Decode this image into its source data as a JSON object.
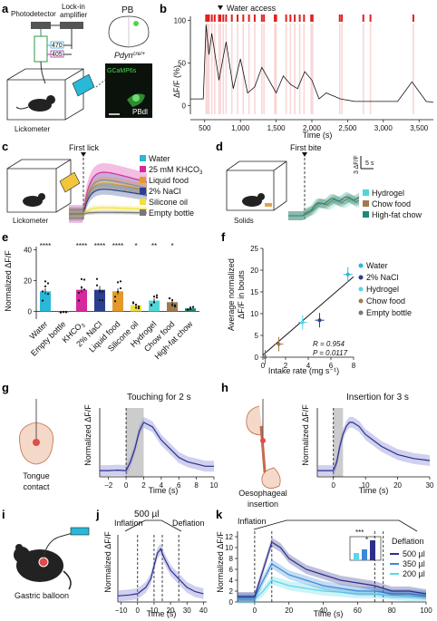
{
  "panels": {
    "a": {
      "label": "a",
      "photodetector": "Photodetector",
      "lockin": "Lock-in",
      "amplifier": "amplifier",
      "pb": "PB",
      "lambda1": "470",
      "lambda2": "405",
      "genotype": "Pdyn",
      "genotype_sup": "cre/+",
      "indicator": "GCaMP6s",
      "region": "PBdl",
      "lickometer": "Lickometer"
    },
    "b": {
      "label": "b",
      "annotation": "Water access",
      "ylabel": "ΔF/F (%)",
      "xlabel": "Time (s)",
      "yticks": [
        "0",
        "50",
        "100"
      ],
      "xticks": [
        "500",
        "1,000",
        "1,500",
        "2,000",
        "2,500",
        "3,000",
        "3,500"
      ]
    },
    "c": {
      "label": "c",
      "event": "First lick",
      "lickometer": "Lickometer",
      "legend": [
        {
          "name": "Water",
          "color": "#29b8d8"
        },
        {
          "name": "25 mM KHCO",
          "sub": "3",
          "color": "#d6299e"
        },
        {
          "name": "Liquid food",
          "color": "#e39a2b"
        },
        {
          "name": "2% NaCl",
          "color": "#2b3f8f"
        },
        {
          "name": "Silicone oil",
          "color": "#f2df3c"
        },
        {
          "name": "Empty bottle",
          "color": "#777777"
        }
      ]
    },
    "d": {
      "label": "d",
      "event": "First bite",
      "solids": "Solids",
      "scale_y": "3 ΔF/F",
      "scale_x": "5 s",
      "legend": [
        {
          "name": "Hydrogel",
          "color": "#4fd6d6"
        },
        {
          "name": "Chow food",
          "color": "#a07a50"
        },
        {
          "name": "High-fat chow",
          "color": "#1a8a7a"
        }
      ]
    },
    "e": {
      "label": "e",
      "ylabel": "Normalized ΔF/F",
      "yticks": [
        "0",
        "20",
        "40"
      ],
      "categories": [
        "Water",
        "Empty bottle",
        "KHCO3",
        "2% NaCl",
        "Liquid food",
        "Silicone oil",
        "Hydrogel",
        "Chow food",
        "High-fat chow"
      ],
      "xtick_text": [
        "Water",
        "Empty bottle",
        "KHCO",
        "2% NaCl",
        "Liquid food",
        "Silicone oil",
        "Hydrogel",
        "Chow food",
        "High-fat chow"
      ],
      "sig": [
        "****",
        "",
        "****",
        "****",
        "****",
        "*",
        "**",
        "*",
        ""
      ]
    },
    "f": {
      "label": "f",
      "ylabel1": "Average normalized",
      "ylabel2": "ΔF/F in bouts",
      "xlabel": "Intake rate (mg s⁻¹)",
      "xticks": [
        "0",
        "2",
        "4",
        "6",
        "8"
      ],
      "yticks": [
        "0",
        "5",
        "10",
        "15",
        "20",
        "25"
      ],
      "stat_r": "R = 0.954",
      "stat_p": "P = 0.0117",
      "legend": [
        {
          "name": "Water",
          "color": "#29b8d8"
        },
        {
          "name": "2% NaCl",
          "color": "#2b3f8f"
        },
        {
          "name": "Hydrogel",
          "color": "#4fd6f0"
        },
        {
          "name": "Chow food",
          "color": "#a07a50"
        },
        {
          "name": "Empty bottle",
          "color": "#777777"
        }
      ]
    },
    "g": {
      "label": "g",
      "title": "Touching for 2 s",
      "caption1": "Tongue",
      "caption2": "contact",
      "ylabel": "Normalized ΔF/F",
      "xlabel": "Time (s)",
      "xticks": [
        "−2",
        "0",
        "2",
        "4",
        "6",
        "8",
        "10"
      ]
    },
    "h": {
      "label": "h",
      "title": "Insertion for 3 s",
      "caption1": "Oesophageal",
      "caption2": "insertion",
      "ylabel": "Normalized ΔF/F",
      "xlabel": "Time (s)",
      "xticks": [
        "0",
        "10",
        "20",
        "30"
      ]
    },
    "i": {
      "label": "i",
      "caption": "Gastric balloon"
    },
    "j": {
      "label": "j",
      "inflation": "Inflation",
      "deflation": "Deflation",
      "volume": "500 µl",
      "ylabel": "Normalized ΔF/F",
      "xlabel": "Time (s)",
      "xticks": [
        "−10",
        "0",
        "10",
        "20",
        "30",
        "40"
      ]
    },
    "k": {
      "label": "k",
      "inflation": "Inflation",
      "deflation": "Deflation",
      "ylabel": "Normalized ΔF/F",
      "xlabel": "Time (s)",
      "xticks": [
        "0",
        "20",
        "40",
        "60",
        "80",
        "100"
      ],
      "yticks": [
        "0",
        "2",
        "4",
        "6",
        "8",
        "10",
        "12"
      ],
      "sig1": "***",
      "sig2": "*",
      "legend": [
        {
          "name": "500 µl",
          "color": "#2b2f8a"
        },
        {
          "name": "350 µl",
          "color": "#3a8ad8"
        },
        {
          "name": "200 µl",
          "color": "#5ad8e8"
        }
      ]
    }
  },
  "chart_data": [
    {
      "type": "line",
      "panel": "b",
      "xlabel": "Time (s)",
      "ylabel": "ΔF/F (%)",
      "xlim": [
        300,
        3700
      ],
      "ylim": [
        -10,
        105
      ],
      "x": [
        300,
        480,
        520,
        560,
        600,
        700,
        800,
        900,
        1000,
        1100,
        1200,
        1300,
        1400,
        1500,
        1600,
        1700,
        1800,
        1900,
        2000,
        2100,
        2200,
        2400,
        2600,
        2800,
        3000,
        3200,
        3400,
        3600,
        3700
      ],
      "y": [
        8,
        8,
        95,
        60,
        85,
        30,
        75,
        20,
        55,
        15,
        22,
        45,
        30,
        15,
        35,
        25,
        20,
        40,
        30,
        8,
        15,
        8,
        5,
        5,
        5,
        5,
        28,
        5,
        4
      ]
    },
    {
      "type": "bar",
      "panel": "e",
      "categories": [
        "Water",
        "Empty bottle",
        "KHCO3",
        "2% NaCl",
        "Liquid food",
        "Silicone oil",
        "Hydrogel",
        "Chow food",
        "High-fat chow"
      ],
      "values": [
        13,
        -0.5,
        14,
        14,
        13,
        4,
        7,
        6,
        2
      ],
      "errors": [
        2,
        0.5,
        2,
        2.5,
        2,
        1,
        1.5,
        1.5,
        1
      ],
      "ylim": [
        -5,
        42
      ],
      "ylabel": "Normalized ΔF/F"
    },
    {
      "type": "scatter",
      "panel": "f",
      "xlabel": "Intake rate (mg s⁻¹)",
      "ylabel": "Average normalized ΔF/F in bouts",
      "xlim": [
        0,
        8
      ],
      "ylim": [
        0,
        25
      ],
      "series": [
        {
          "name": "Water",
          "x": [
            7.5
          ],
          "y": [
            19
          ]
        },
        {
          "name": "2% NaCl",
          "x": [
            5
          ],
          "y": [
            8.5
          ]
        },
        {
          "name": "Hydrogel",
          "x": [
            3.5
          ],
          "y": [
            8
          ]
        },
        {
          "name": "Chow food",
          "x": [
            1.4
          ],
          "y": [
            3
          ]
        },
        {
          "name": "Empty bottle",
          "x": [
            0.2
          ],
          "y": [
            0
          ]
        }
      ],
      "fit": {
        "x": [
          0,
          8
        ],
        "y": [
          0.5,
          18.5
        ]
      }
    },
    {
      "type": "line",
      "panel": "g",
      "xlabel": "Time (s)",
      "xlim": [
        -3,
        10
      ],
      "x": [
        -3,
        -2,
        -1,
        0,
        0.5,
        1,
        1.5,
        2,
        3,
        4,
        5,
        6,
        7,
        8,
        9,
        10
      ],
      "y": [
        0,
        0,
        0.1,
        0,
        2,
        5,
        9,
        11,
        10,
        7,
        5,
        3,
        2,
        1.5,
        1,
        1
      ]
    },
    {
      "type": "line",
      "panel": "h",
      "xlabel": "Time (s)",
      "xlim": [
        -5,
        30
      ],
      "x": [
        -5,
        0,
        1,
        2,
        3,
        4,
        5,
        6,
        8,
        10,
        15,
        20,
        25,
        30
      ],
      "y": [
        0,
        0,
        2,
        6,
        9,
        11,
        12,
        12,
        11,
        9,
        6,
        4,
        3,
        2.5
      ]
    },
    {
      "type": "line",
      "panel": "j",
      "xlabel": "Time (s)",
      "xlim": [
        -12,
        42
      ],
      "x": [
        -12,
        -5,
        0,
        5,
        8,
        10,
        12,
        14,
        16,
        20,
        25,
        30,
        35,
        40
      ],
      "y": [
        0,
        0.2,
        0.5,
        2,
        4,
        7,
        10,
        11,
        9,
        6,
        4,
        2,
        1,
        0.5
      ]
    },
    {
      "type": "line",
      "panel": "k",
      "xlabel": "Time (s)",
      "xlim": [
        -10,
        100
      ],
      "ylim": [
        0,
        13
      ],
      "series": [
        {
          "name": "500 µl",
          "x": [
            -10,
            0,
            5,
            10,
            15,
            20,
            30,
            40,
            50,
            60,
            70,
            80,
            90,
            100
          ],
          "y": [
            1,
            1,
            6,
            11,
            10,
            8,
            6,
            5,
            4,
            3.5,
            3,
            2,
            2,
            1.5
          ]
        },
        {
          "name": "350 µl",
          "x": [
            -10,
            0,
            5,
            10,
            15,
            20,
            30,
            40,
            50,
            60,
            70,
            80,
            90,
            100
          ],
          "y": [
            0.8,
            0.8,
            4,
            7,
            6,
            5,
            4,
            3,
            2.5,
            2,
            2,
            1.5,
            1.5,
            1.2
          ]
        },
        {
          "name": "200 µl",
          "x": [
            -10,
            0,
            5,
            10,
            15,
            20,
            30,
            40,
            50,
            60,
            70,
            80,
            90,
            100
          ],
          "y": [
            0.5,
            0.5,
            2,
            4,
            3.5,
            3,
            2.5,
            2,
            1.8,
            1.5,
            1.5,
            1.2,
            1,
            1
          ]
        }
      ]
    }
  ]
}
